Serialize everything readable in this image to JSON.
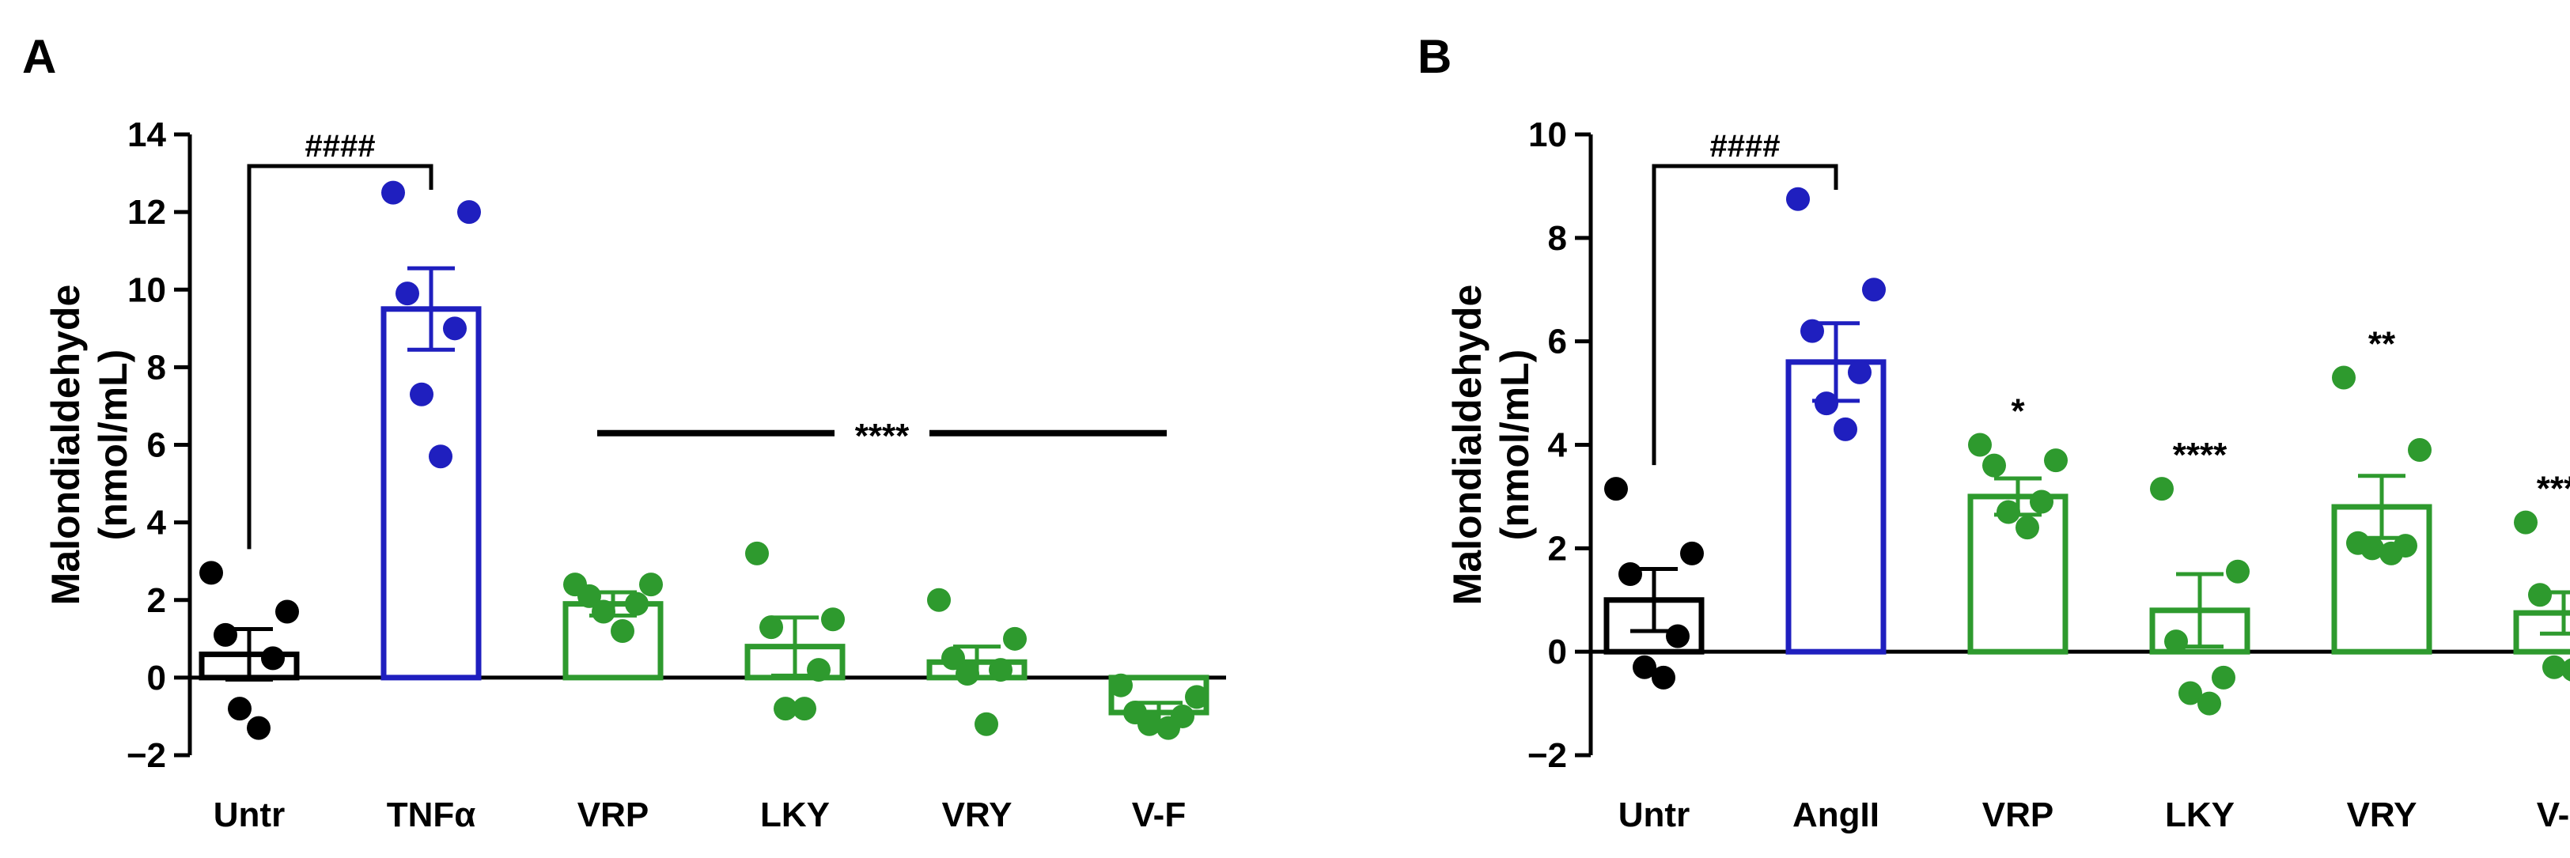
{
  "chart_data": [
    {
      "panel": "A",
      "type": "bar",
      "ylabel_line1": "Malondialdehyde",
      "ylabel_line2": "(nmol/mL)",
      "ylim": [
        -2,
        14
      ],
      "yticks": [
        -2,
        0,
        2,
        4,
        6,
        8,
        10,
        12,
        14
      ],
      "ytick_labels": [
        "−2",
        "0",
        "2",
        "4",
        "6",
        "8",
        "10",
        "12",
        "14"
      ],
      "categories": [
        "Untr",
        "TNFα",
        "VRP",
        "LKY",
        "VRY",
        "V-F"
      ],
      "colors": [
        "#000000",
        "#1f1fbf",
        "#2e9a2e",
        "#2e9a2e",
        "#2e9a2e",
        "#2e9a2e"
      ],
      "means": [
        0.6,
        9.5,
        1.9,
        0.8,
        0.4,
        -0.9
      ],
      "sem": [
        0.65,
        1.05,
        0.3,
        0.75,
        0.4,
        0.25
      ],
      "points": [
        [
          2.7,
          1.7,
          1.1,
          0.5,
          -0.8,
          -1.3
        ],
        [
          12.5,
          12.0,
          9.9,
          9.0,
          7.3,
          5.7
        ],
        [
          2.4,
          2.4,
          2.1,
          1.9,
          1.7,
          1.2
        ],
        [
          3.2,
          1.5,
          1.3,
          0.2,
          -0.8,
          -0.8
        ],
        [
          2.0,
          1.0,
          0.5,
          0.2,
          0.1,
          -1.2
        ],
        [
          -0.2,
          -0.5,
          -0.9,
          -1.0,
          -1.2,
          -1.3
        ]
      ],
      "bracket": {
        "text": "####",
        "from": "Untr",
        "to": "TNFα"
      },
      "sig_line": {
        "text": "****",
        "from": "VRP",
        "to": "V-F",
        "y": 6.3
      }
    },
    {
      "panel": "B",
      "type": "bar",
      "ylabel_line1": "Malondialdehyde",
      "ylabel_line2": "(nmol/mL)",
      "ylim": [
        -2,
        10
      ],
      "yticks": [
        -2,
        0,
        2,
        4,
        6,
        8,
        10
      ],
      "ytick_labels": [
        "−2",
        "0",
        "2",
        "4",
        "6",
        "8",
        "10"
      ],
      "categories": [
        "Untr",
        "AngII",
        "VRP",
        "LKY",
        "VRY",
        "V-F"
      ],
      "colors": [
        "#000000",
        "#1f1fbf",
        "#2e9a2e",
        "#2e9a2e",
        "#2e9a2e",
        "#2e9a2e"
      ],
      "means": [
        1.0,
        5.6,
        3.0,
        0.8,
        2.8,
        0.75
      ],
      "sem": [
        0.6,
        0.75,
        0.35,
        0.7,
        0.6,
        0.4
      ],
      "points": [
        [
          3.15,
          1.9,
          1.5,
          0.3,
          -0.3,
          -0.5
        ],
        [
          8.75,
          7.0,
          6.2,
          5.4,
          4.8,
          4.3
        ],
        [
          4.0,
          3.7,
          3.6,
          2.9,
          2.7,
          2.4
        ],
        [
          3.15,
          1.55,
          0.2,
          -0.5,
          -0.8,
          -1.0
        ],
        [
          5.3,
          3.9,
          2.1,
          2.05,
          2.0,
          1.9
        ],
        [
          2.5,
          1.4,
          1.1,
          0.0,
          -0.3,
          -0.35
        ]
      ],
      "bracket": {
        "text": "####",
        "from": "Untr",
        "to": "AngII"
      },
      "stars": [
        "",
        "",
        "*",
        "****",
        "**",
        "****"
      ]
    }
  ]
}
